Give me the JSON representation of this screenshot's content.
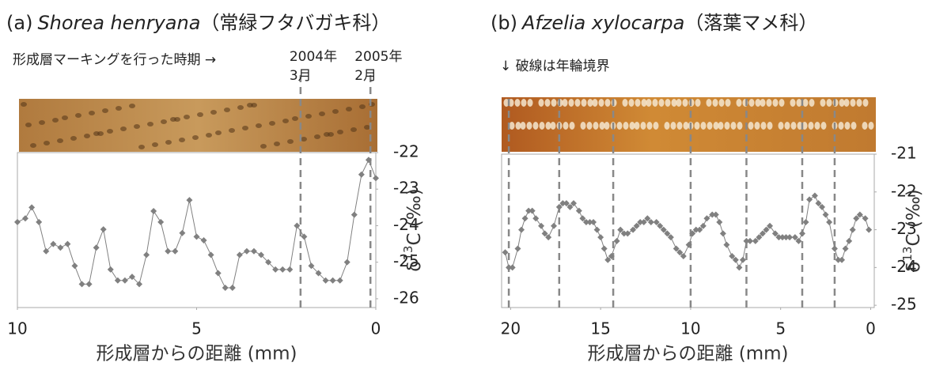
{
  "chart_data": [
    {
      "type": "line",
      "title": {
        "label": "(a)",
        "species": "Shorea henryana",
        "family": "（常緑フタバガキ科）"
      },
      "annotation": [
        "形成層マーキングを行った時期 →"
      ],
      "marker_labels": [
        [
          "2004年",
          "3月"
        ],
        [
          "2005年",
          "2月"
        ]
      ],
      "markers": [
        2.1,
        0.15
      ],
      "x_label": "形成層からの距離 (mm)",
      "y_label": [
        "δ",
        "13",
        "C (‰)"
      ],
      "xlim": [
        10,
        0
      ],
      "xticks": [
        10,
        5,
        0
      ],
      "ylim": [
        -26.24,
        -22
      ],
      "yticks": [
        -22,
        -23,
        -24,
        -25,
        -26
      ],
      "color": "#808080",
      "x": [
        10,
        9.78,
        9.6,
        9.4,
        9.2,
        9.0,
        8.8,
        8.6,
        8.4,
        8.2,
        8.0,
        7.8,
        7.6,
        7.4,
        7.2,
        7.0,
        6.8,
        6.6,
        6.4,
        6.2,
        6.0,
        5.8,
        5.6,
        5.4,
        5.2,
        5.0,
        4.8,
        4.6,
        4.4,
        4.2,
        4.0,
        3.8,
        3.6,
        3.4,
        3.2,
        3.0,
        2.8,
        2.6,
        2.4,
        2.2,
        2.0,
        1.8,
        1.6,
        1.4,
        1.2,
        1.0,
        0.8,
        0.6,
        0.4,
        0.2,
        0.0
      ],
      "values": [
        -23.9,
        -23.8,
        -23.5,
        -23.9,
        -24.7,
        -24.5,
        -24.6,
        -24.5,
        -25.1,
        -25.6,
        -25.6,
        -24.6,
        -24.1,
        -25.2,
        -25.5,
        -25.5,
        -25.4,
        -25.6,
        -24.8,
        -23.6,
        -23.9,
        -24.7,
        -24.7,
        -24.2,
        -23.3,
        -24.3,
        -24.4,
        -24.8,
        -25.3,
        -25.7,
        -25.7,
        -24.8,
        -24.7,
        -24.7,
        -24.8,
        -25.0,
        -25.2,
        -25.2,
        -25.2,
        -24.0,
        -24.3,
        -25.1,
        -25.3,
        -25.5,
        -25.5,
        -25.5,
        -25.0,
        -23.7,
        -22.6,
        -22.2,
        -22.7
      ]
    },
    {
      "type": "line",
      "title": {
        "label": "(b)",
        "species": "Afzelia xylocarpa",
        "family": "（落葉マメ科）"
      },
      "annotation": [
        "↓ 破線は年輪境界"
      ],
      "marker_labels": [],
      "markers": [
        20.1,
        17.3,
        14.3,
        10.0,
        6.9,
        3.8,
        2.0
      ],
      "x_label": "形成層からの距離 (mm)",
      "y_label": [
        "δ",
        "13",
        "C (‰)"
      ],
      "xlim": [
        20.5,
        -0.2
      ],
      "xticks": [
        20,
        15,
        10,
        5,
        0
      ],
      "ylim": [
        -25.06,
        -21
      ],
      "yticks": [
        -21,
        -22,
        -23,
        -24,
        -25
      ],
      "color": "#808080",
      "x": [
        20.3,
        20.1,
        19.9,
        19.6,
        19.4,
        19.2,
        19.0,
        18.8,
        18.6,
        18.3,
        18.1,
        17.9,
        17.6,
        17.3,
        17.1,
        16.9,
        16.7,
        16.5,
        16.2,
        16.0,
        15.8,
        15.6,
        15.4,
        15.2,
        15.0,
        14.8,
        14.6,
        14.4,
        14.1,
        13.9,
        13.7,
        13.5,
        13.2,
        13.0,
        12.8,
        12.6,
        12.4,
        12.2,
        11.9,
        11.7,
        11.5,
        11.3,
        11.1,
        10.8,
        10.6,
        10.4,
        10.1,
        9.9,
        9.7,
        9.5,
        9.3,
        9.1,
        8.8,
        8.6,
        8.4,
        8.2,
        8.0,
        7.7,
        7.5,
        7.3,
        7.1,
        6.9,
        6.7,
        6.4,
        6.2,
        6.0,
        5.8,
        5.6,
        5.3,
        5.1,
        4.9,
        4.7,
        4.5,
        4.2,
        4.0,
        3.8,
        3.6,
        3.4,
        3.1,
        2.9,
        2.7,
        2.5,
        2.3,
        2.0,
        1.8,
        1.6,
        1.4,
        1.2,
        1.0,
        0.8,
        0.6,
        0.3,
        0.1
      ],
      "values": [
        -23.6,
        -24.0,
        -24.0,
        -23.5,
        -23.0,
        -22.7,
        -22.5,
        -22.5,
        -22.7,
        -22.9,
        -23.1,
        -23.2,
        -22.9,
        -22.4,
        -22.3,
        -22.3,
        -22.4,
        -22.3,
        -22.5,
        -22.7,
        -22.8,
        -22.8,
        -22.8,
        -23.0,
        -23.2,
        -23.5,
        -23.8,
        -23.7,
        -23.3,
        -23.0,
        -23.1,
        -23.1,
        -23.0,
        -22.9,
        -22.8,
        -22.8,
        -22.7,
        -22.8,
        -22.8,
        -22.9,
        -23.0,
        -23.1,
        -23.2,
        -23.5,
        -23.6,
        -23.7,
        -23.4,
        -23.1,
        -23.0,
        -23.0,
        -22.9,
        -22.7,
        -22.6,
        -22.6,
        -22.8,
        -23.1,
        -23.4,
        -23.7,
        -23.8,
        -24.0,
        -23.8,
        -23.3,
        -23.3,
        -23.3,
        -23.2,
        -23.1,
        -23.0,
        -22.9,
        -23.1,
        -23.2,
        -23.2,
        -23.2,
        -23.2,
        -23.2,
        -23.3,
        -23.1,
        -22.8,
        -22.2,
        -22.1,
        -22.3,
        -22.4,
        -22.6,
        -22.8,
        -23.5,
        -23.8,
        -23.8,
        -23.5,
        -23.3,
        -23.0,
        -22.7,
        -22.6,
        -22.7,
        -23.0
      ]
    }
  ]
}
